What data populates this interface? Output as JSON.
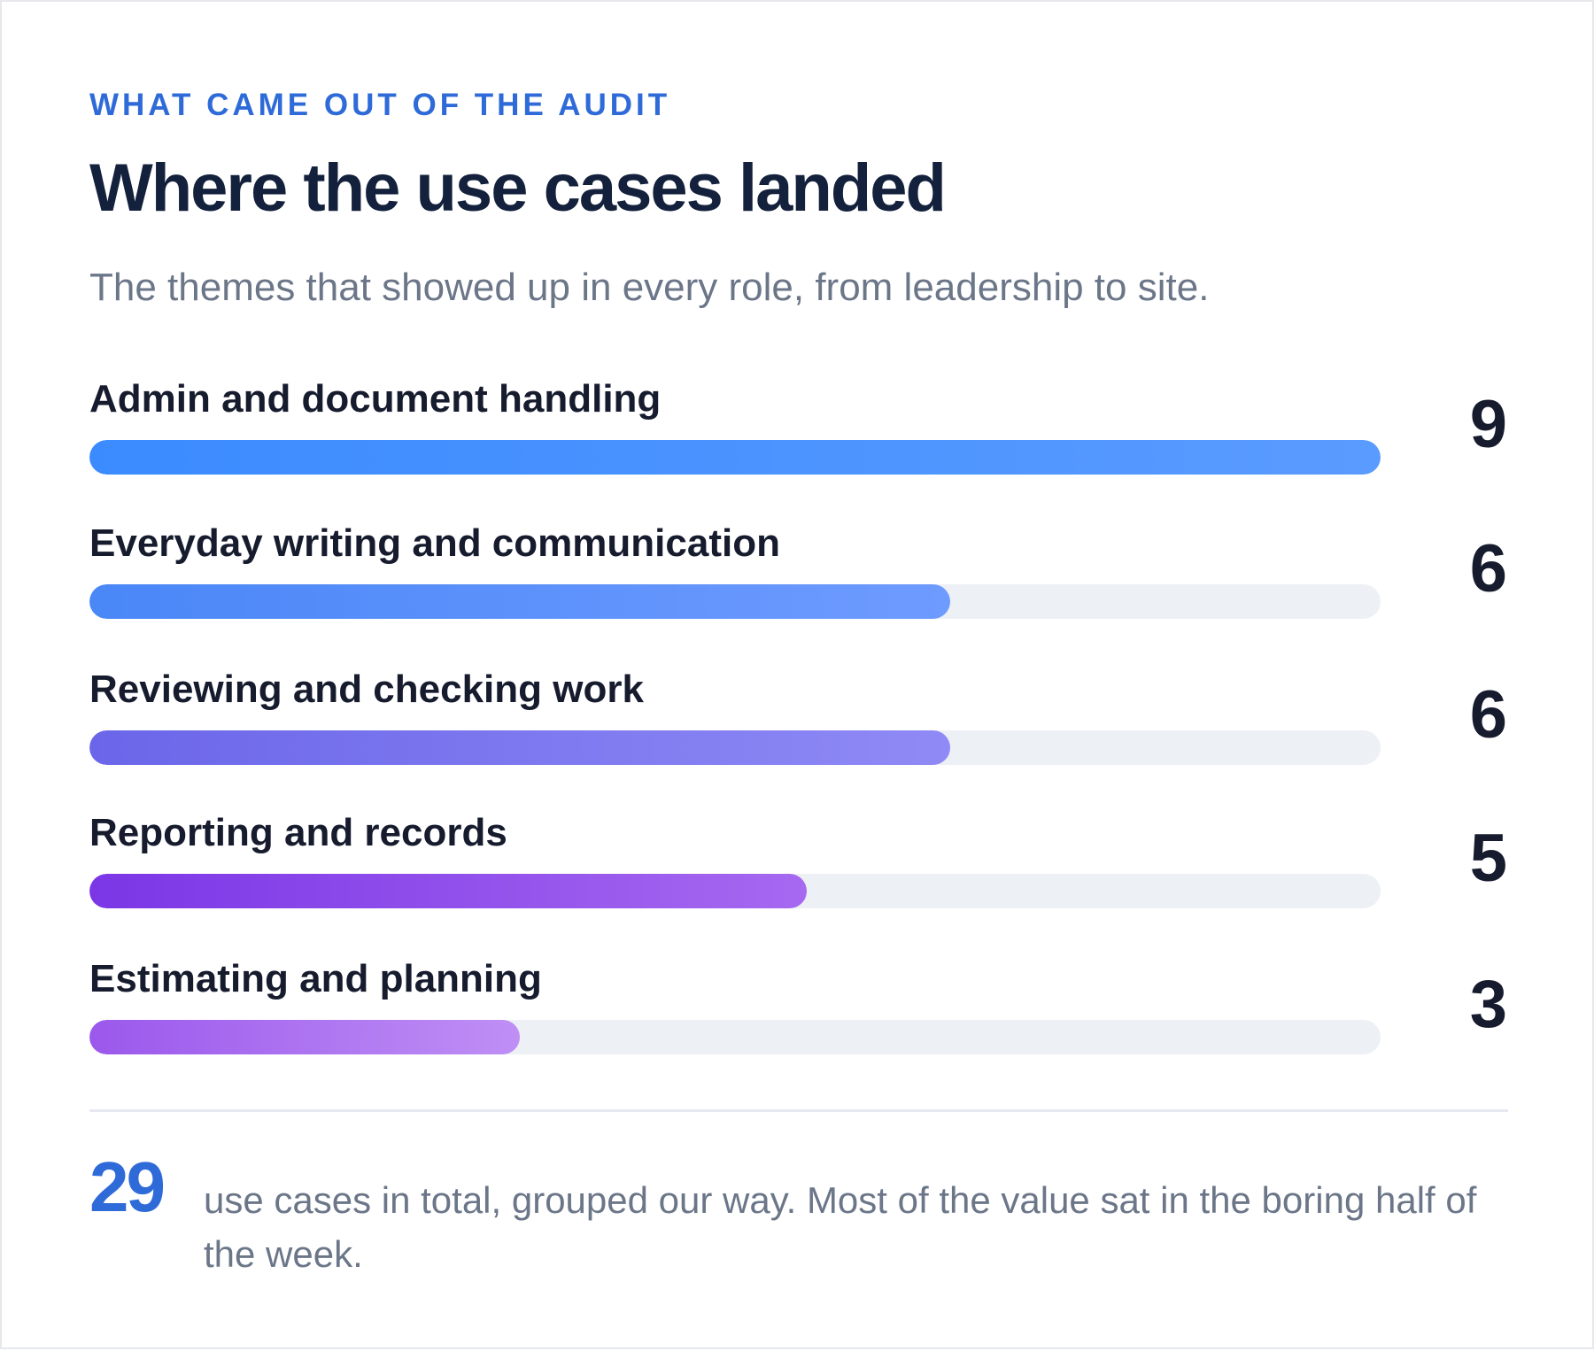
{
  "header": {
    "eyebrow": "WHAT CAME OUT OF THE AUDIT",
    "title": "Where the use cases landed",
    "subtitle": "The themes that showed up in every role, from leadership to site."
  },
  "chart_data": {
    "type": "bar",
    "orientation": "horizontal",
    "categories": [
      "Admin and document handling",
      "Everyday writing and communication",
      "Reviewing and checking work",
      "Reporting and records",
      "Estimating and planning"
    ],
    "values": [
      9,
      6,
      6,
      5,
      3
    ],
    "value_labels": [
      "9",
      "6",
      "6",
      "5",
      "3"
    ],
    "xlim": [
      0,
      9
    ],
    "grid": false,
    "legend": "none",
    "colors": [
      [
        "#3b8bff",
        "#5a9bff"
      ],
      [
        "#4a87f7",
        "#6e9bff"
      ],
      [
        "#6b66e9",
        "#8f8af5"
      ],
      [
        "#7b36e6",
        "#a669f0"
      ],
      [
        "#9b58ec",
        "#bf8ff5"
      ]
    ]
  },
  "footer": {
    "total": "29",
    "note": "use cases in total, grouped our way. Most of the value sat in the boring half of the week."
  }
}
